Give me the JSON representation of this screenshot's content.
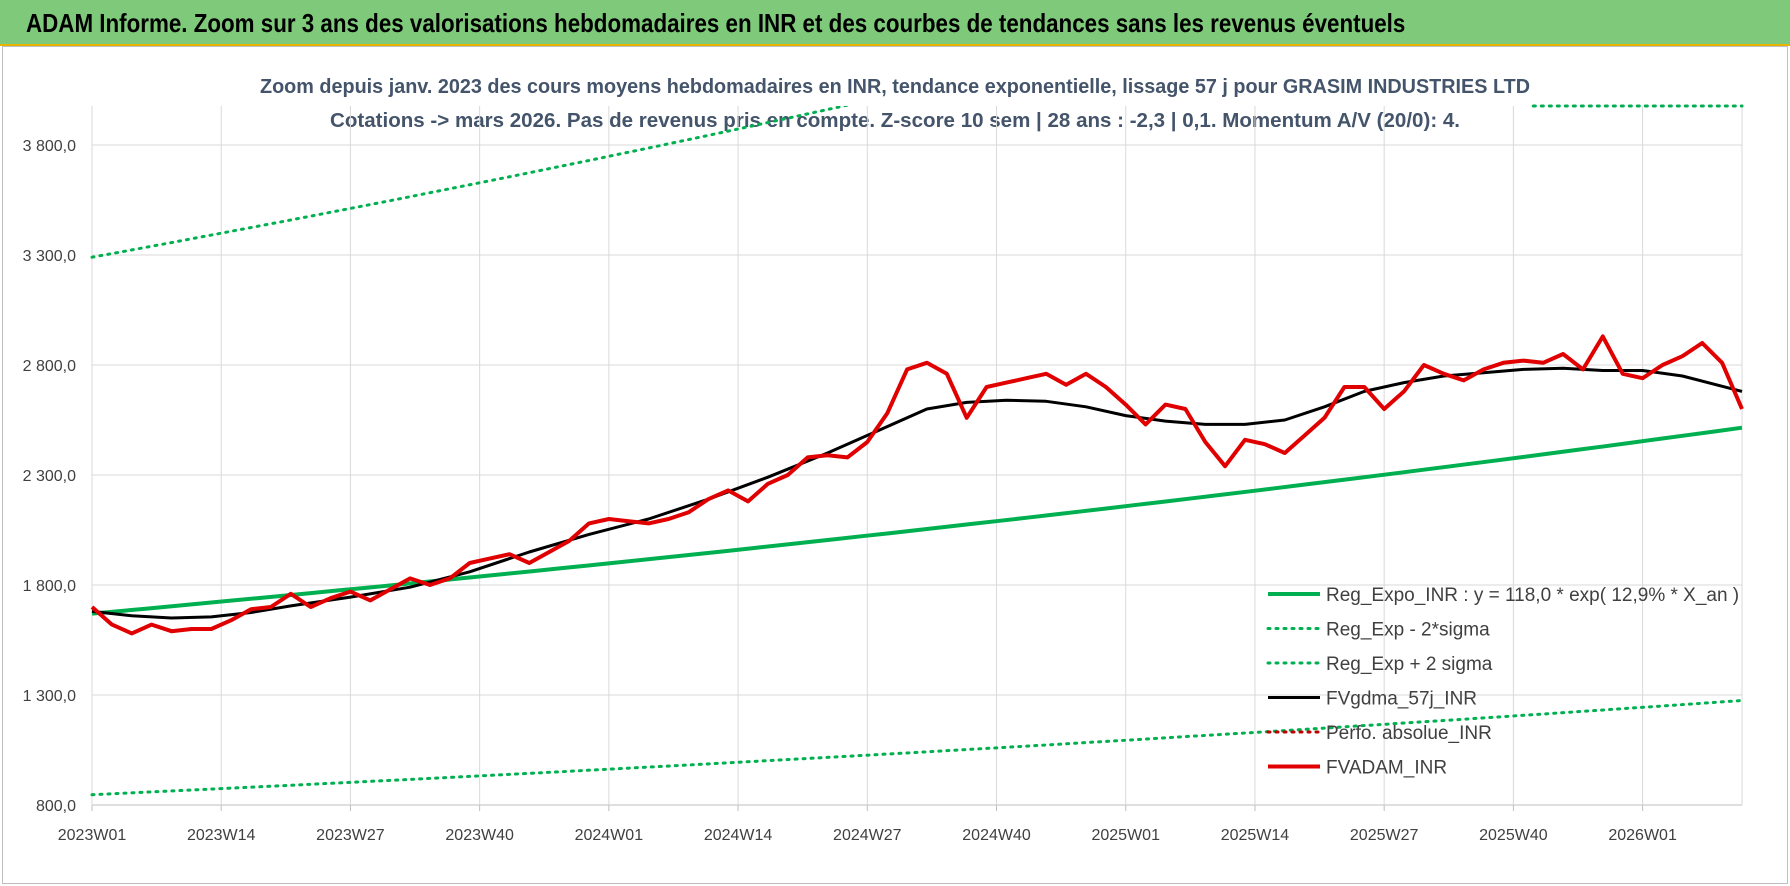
{
  "banner": {
    "title": "ADAM Informe. Zoom sur 3 ans des valorisations hebdomadaires en INR et des courbes de tendances sans les revenus éventuels"
  },
  "colors": {
    "banner_bg": "#7fc97a",
    "trend": "#00b050",
    "sigma": "#00b050",
    "gdma": "#000000",
    "perfo": "#c00000",
    "adam": "#e00000",
    "title_text": "#44546a"
  },
  "chart_data": {
    "type": "line",
    "title_line1": "Zoom depuis janv. 2023 des cours moyens hebdomadaires en INR, tendance exponentielle, lissage 57 j pour GRASIM INDUSTRIES LTD",
    "title_line2": "Cotations -> mars 2026. Pas de revenus pris en compte. Z-score 10 sem | 28 ans : -2,3 | 0,1. Momentum A/V (20/0): 4.",
    "ylim": [
      800,
      4000
    ],
    "yticks": [
      800,
      1300,
      1800,
      2300,
      2800,
      3300,
      3800
    ],
    "ytick_labels": [
      "800,0",
      "1 300,0",
      "1 800,0",
      "2 300,0",
      "2 800,0",
      "3 300,0",
      "3 800,0"
    ],
    "x_tick_labels": [
      "2023W01",
      "2023W14",
      "2023W27",
      "2023W40",
      "2024W01",
      "2024W14",
      "2024W27",
      "2024W40",
      "2025W01",
      "2025W14",
      "2025W27",
      "2025W40",
      "2026W01"
    ],
    "x_tick_step_weeks": 13,
    "n_weeks": 167,
    "grid": true,
    "legend_position": "bottom-right",
    "series": [
      {
        "name": "Reg_Expo_INR : y = 118,0 * exp( 12,9% *  X_an )",
        "style": "solid-thick",
        "color": "#00b050",
        "x": [
          0,
          166
        ],
        "y": [
          1670,
          2515
        ]
      },
      {
        "name": "Reg_Exp - 2*sigma",
        "style": "dotted",
        "color": "#00b050",
        "x": [
          0,
          166
        ],
        "y": [
          847,
          1275
        ]
      },
      {
        "name": "Reg_Exp + 2 sigma",
        "style": "dotted",
        "color": "#00b050",
        "x": [
          0,
          166
        ],
        "y": [
          3290,
          4990
        ]
      },
      {
        "name": "FVgdma_57j_INR",
        "style": "solid",
        "color": "#000000",
        "x": [
          0,
          4,
          8,
          12,
          16,
          20,
          26,
          32,
          38,
          44,
          50,
          56,
          62,
          68,
          74,
          80,
          84,
          88,
          92,
          96,
          100,
          104,
          108,
          112,
          116,
          120,
          124,
          128,
          132,
          136,
          140,
          144,
          148,
          152,
          156,
          160,
          166
        ],
        "y": [
          1680,
          1660,
          1650,
          1655,
          1675,
          1705,
          1745,
          1790,
          1860,
          1950,
          2030,
          2100,
          2190,
          2290,
          2400,
          2520,
          2600,
          2630,
          2640,
          2635,
          2610,
          2570,
          2545,
          2530,
          2530,
          2550,
          2610,
          2680,
          2720,
          2750,
          2765,
          2780,
          2785,
          2775,
          2775,
          2750,
          2680
        ]
      },
      {
        "name": "Perfo. absolue_INR",
        "style": "dotted-red",
        "color": "#c00000",
        "x": [],
        "y": []
      },
      {
        "name": "FVADAM_INR",
        "style": "solid-thick",
        "color": "#e00000",
        "x": [
          0,
          2,
          4,
          6,
          8,
          10,
          12,
          14,
          16,
          18,
          20,
          22,
          24,
          26,
          28,
          30,
          32,
          34,
          36,
          38,
          40,
          42,
          44,
          46,
          48,
          50,
          52,
          54,
          56,
          58,
          60,
          62,
          64,
          66,
          68,
          70,
          72,
          74,
          76,
          78,
          80,
          82,
          84,
          86,
          88,
          90,
          92,
          94,
          96,
          98,
          100,
          102,
          104,
          106,
          108,
          110,
          112,
          114,
          116,
          118,
          120,
          122,
          124,
          126,
          128,
          130,
          132,
          134,
          136,
          138,
          140,
          142,
          144,
          146,
          148,
          150,
          152,
          154,
          156,
          158,
          160,
          162,
          164,
          166
        ],
        "y": [
          1700,
          1620,
          1580,
          1620,
          1590,
          1600,
          1600,
          1640,
          1690,
          1700,
          1760,
          1700,
          1740,
          1770,
          1730,
          1780,
          1830,
          1800,
          1830,
          1900,
          1920,
          1940,
          1900,
          1950,
          2000,
          2080,
          2100,
          2090,
          2080,
          2100,
          2130,
          2190,
          2230,
          2180,
          2260,
          2300,
          2380,
          2390,
          2380,
          2450,
          2580,
          2780,
          2810,
          2760,
          2560,
          2700,
          2720,
          2740,
          2760,
          2710,
          2760,
          2700,
          2620,
          2530,
          2620,
          2600,
          2450,
          2340,
          2460,
          2440,
          2400,
          2480,
          2560,
          2700,
          2700,
          2600,
          2680,
          2800,
          2760,
          2730,
          2780,
          2810,
          2820,
          2810,
          2850,
          2780,
          2930,
          2760,
          2740,
          2800,
          2840,
          2900,
          2810,
          2600
        ]
      }
    ]
  }
}
